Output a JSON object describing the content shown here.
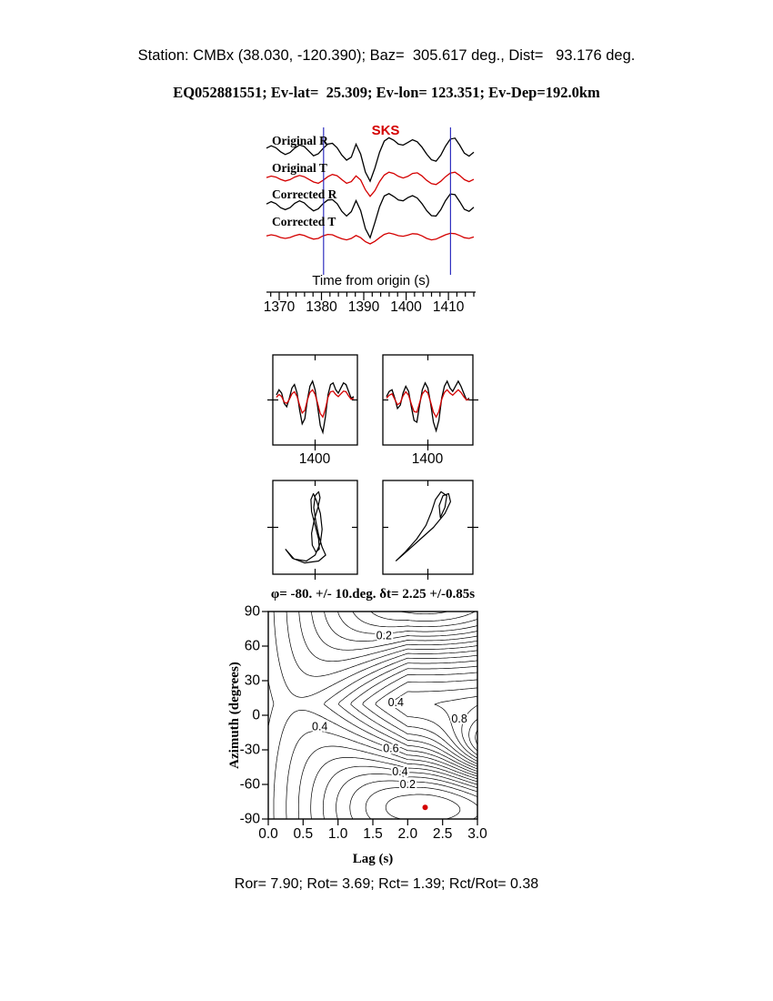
{
  "header": {
    "line1": "Station: CMBx (38.030, -120.390); Baz=  305.617 deg., Dist=   93.176 deg.",
    "line2": "EQ052881551; Ev-lat=  25.309; Ev-lon= 123.351; Ev-Dep=192.0km"
  },
  "footer": {
    "text": "Ror= 7.90; Rot= 3.69; Rct= 1.39; Rct/Rot= 0.38"
  },
  "colors": {
    "red": "#d40000",
    "blue": "#3030c0",
    "black": "#000000"
  },
  "chart_data": [
    {
      "id": "waveforms",
      "type": "line",
      "title": "SKS",
      "xlabel": "Time from origin (s)",
      "x_range": [
        1367,
        1416
      ],
      "x_ticks": [
        1370,
        1380,
        1390,
        1400,
        1410
      ],
      "minor_tick_step": 2,
      "window": [
        1380.5,
        1410.5
      ],
      "series": [
        {
          "name": "Original R",
          "color": "black",
          "values": [
            0.1,
            0.22,
            0.12,
            -0.08,
            -0.22,
            -0.12,
            0.1,
            0.26,
            0.18,
            -0.05,
            -0.28,
            -0.18,
            0.08,
            0.3,
            0.34,
            0.12,
            -0.25,
            -0.5,
            -0.35,
            0.3,
            -0.2,
            -1.1,
            -1.55,
            -0.9,
            -0.1,
            0.45,
            0.62,
            0.5,
            0.3,
            0.25,
            0.38,
            0.52,
            0.42,
            0.15,
            -0.2,
            -0.48,
            -0.55,
            -0.25,
            0.2,
            0.55,
            0.6,
            0.25,
            -0.15,
            -0.3,
            -0.1
          ]
        },
        {
          "name": "Original T",
          "color": "red",
          "values": [
            0.05,
            0.14,
            0.08,
            -0.06,
            -0.16,
            -0.08,
            0.08,
            0.18,
            0.1,
            -0.06,
            -0.22,
            -0.3,
            -0.12,
            0.1,
            0.24,
            0.16,
            -0.08,
            -0.3,
            -0.2,
            0.15,
            -0.1,
            -0.7,
            -1.1,
            -0.75,
            -0.2,
            0.2,
            0.38,
            0.3,
            0.12,
            0.02,
            0.12,
            0.3,
            0.34,
            0.15,
            -0.12,
            -0.32,
            -0.38,
            -0.18,
            0.1,
            0.32,
            0.38,
            0.18,
            -0.08,
            -0.2,
            -0.06
          ]
        },
        {
          "name": "Corrected R",
          "color": "black",
          "values": [
            0.08,
            0.2,
            0.1,
            -0.1,
            -0.2,
            -0.1,
            0.12,
            0.24,
            0.14,
            -0.08,
            -0.26,
            -0.16,
            0.1,
            0.28,
            0.3,
            0.1,
            -0.28,
            -0.52,
            -0.3,
            0.25,
            -0.25,
            -1.15,
            -1.6,
            -0.85,
            -0.05,
            0.48,
            0.6,
            0.46,
            0.28,
            0.24,
            0.4,
            0.5,
            0.38,
            0.1,
            -0.25,
            -0.5,
            -0.52,
            -0.2,
            0.25,
            0.58,
            0.55,
            0.2,
            -0.18,
            -0.28,
            -0.08
          ]
        },
        {
          "name": "Corrected T",
          "color": "red",
          "values": [
            0.04,
            0.1,
            0.05,
            -0.05,
            -0.1,
            -0.05,
            0.05,
            0.12,
            0.06,
            -0.05,
            -0.14,
            -0.1,
            0.04,
            0.12,
            0.1,
            -0.02,
            -0.12,
            -0.18,
            -0.1,
            0.06,
            -0.06,
            -0.28,
            -0.4,
            -0.26,
            -0.06,
            0.12,
            0.2,
            0.14,
            0.05,
            0.02,
            0.08,
            0.16,
            0.14,
            0.04,
            -0.1,
            -0.18,
            -0.14,
            -0.02,
            0.1,
            0.18,
            0.16,
            0.06,
            -0.06,
            -0.1,
            -0.02
          ]
        }
      ]
    },
    {
      "id": "waveform-compare-left",
      "type": "line",
      "x_tick_label": "1400",
      "series": [
        {
          "color": "black",
          "values": [
            0.15,
            0.3,
            0.2,
            -0.1,
            -0.2,
            0.05,
            0.35,
            0.45,
            0.2,
            -0.3,
            -0.7,
            -0.55,
            0.0,
            0.4,
            0.55,
            0.3,
            -0.2,
            -0.75,
            -0.95,
            -0.5,
            0.15,
            0.45,
            0.5,
            0.3,
            0.2,
            0.35,
            0.5,
            0.45,
            0.25,
            0.05,
            0.1
          ]
        },
        {
          "color": "red",
          "values": [
            0.08,
            0.16,
            0.1,
            -0.06,
            -0.1,
            0.02,
            0.18,
            0.24,
            0.1,
            -0.16,
            -0.38,
            -0.3,
            0.0,
            0.22,
            0.3,
            0.16,
            -0.1,
            -0.4,
            -0.5,
            -0.26,
            0.08,
            0.24,
            0.26,
            0.16,
            0.1,
            0.18,
            0.26,
            0.24,
            0.12,
            0.02,
            0.05
          ]
        }
      ]
    },
    {
      "id": "waveform-compare-right",
      "type": "line",
      "x_tick_label": "1400",
      "series": [
        {
          "color": "black",
          "values": [
            0.1,
            0.25,
            0.3,
            0.05,
            -0.25,
            -0.15,
            0.2,
            0.4,
            0.25,
            -0.2,
            -0.6,
            -0.65,
            -0.15,
            0.3,
            0.5,
            0.35,
            -0.1,
            -0.65,
            -0.9,
            -0.6,
            0.05,
            0.4,
            0.55,
            0.35,
            0.25,
            0.4,
            0.55,
            0.4,
            0.2,
            0.0,
            0.05
          ]
        },
        {
          "color": "red",
          "values": [
            0.05,
            0.14,
            0.18,
            0.02,
            -0.14,
            -0.08,
            0.12,
            0.24,
            0.14,
            -0.12,
            -0.34,
            -0.36,
            -0.08,
            0.18,
            0.28,
            0.2,
            -0.06,
            -0.36,
            -0.5,
            -0.34,
            0.02,
            0.22,
            0.3,
            0.2,
            0.14,
            0.22,
            0.3,
            0.22,
            0.1,
            0.0,
            0.02
          ]
        }
      ]
    },
    {
      "id": "particle-motion-left",
      "type": "line",
      "points": [
        [
          -0.85,
          -0.55
        ],
        [
          -0.6,
          -0.8
        ],
        [
          -0.25,
          -0.85
        ],
        [
          0.0,
          -0.7
        ],
        [
          0.15,
          -0.4
        ],
        [
          0.2,
          -0.05
        ],
        [
          0.15,
          0.35
        ],
        [
          0.05,
          0.65
        ],
        [
          -0.05,
          0.85
        ],
        [
          -0.12,
          0.7
        ],
        [
          -0.1,
          0.4
        ],
        [
          0.0,
          0.05
        ],
        [
          0.1,
          -0.3
        ],
        [
          0.12,
          -0.55
        ],
        [
          0.02,
          -0.62
        ],
        [
          -0.08,
          -0.45
        ],
        [
          -0.1,
          -0.15
        ],
        [
          -0.02,
          0.2
        ],
        [
          0.08,
          0.5
        ],
        [
          0.14,
          0.75
        ],
        [
          0.1,
          0.9
        ],
        [
          0.0,
          0.8
        ],
        [
          -0.04,
          0.5
        ],
        [
          0.02,
          0.15
        ],
        [
          0.1,
          -0.2
        ],
        [
          0.2,
          -0.5
        ],
        [
          0.3,
          -0.7
        ],
        [
          0.1,
          -0.85
        ],
        [
          -0.3,
          -0.9
        ],
        [
          -0.65,
          -0.78
        ],
        [
          -0.85,
          -0.55
        ]
      ]
    },
    {
      "id": "particle-motion-right",
      "type": "line",
      "points": [
        [
          -0.85,
          -0.85
        ],
        [
          -0.55,
          -0.6
        ],
        [
          -0.2,
          -0.3
        ],
        [
          0.15,
          0.0
        ],
        [
          0.45,
          0.35
        ],
        [
          0.6,
          0.65
        ],
        [
          0.55,
          0.85
        ],
        [
          0.4,
          0.8
        ],
        [
          0.3,
          0.55
        ],
        [
          0.33,
          0.25
        ],
        [
          0.45,
          0.5
        ],
        [
          0.5,
          0.8
        ],
        [
          0.35,
          0.9
        ],
        [
          0.2,
          0.7
        ],
        [
          0.1,
          0.4
        ],
        [
          -0.05,
          0.05
        ],
        [
          -0.3,
          -0.3
        ],
        [
          -0.6,
          -0.62
        ],
        [
          -0.85,
          -0.85
        ]
      ]
    },
    {
      "id": "splitting-energy-contour",
      "type": "heatmap",
      "title": "φ= -80. +/- 10.deg. δt= 2.25 +/-0.85s",
      "xlabel": "Lag (s)",
      "ylabel": "Azimuth (degrees)",
      "xlim": [
        0,
        3
      ],
      "ylim": [
        -90,
        90
      ],
      "x_ticks": [
        "0.0",
        "0.5",
        "1.0",
        "1.5",
        "2.0",
        "2.5",
        "3.0"
      ],
      "y_ticks": [
        "90",
        "60",
        "30",
        "0",
        "-30",
        "-60",
        "-90"
      ],
      "contour_labels": [
        {
          "text": "0.2",
          "lag": 1.66,
          "az": 69
        },
        {
          "text": "0.4",
          "lag": 1.83,
          "az": 11
        },
        {
          "text": "0.4",
          "lag": 0.74,
          "az": -10
        },
        {
          "text": "0.8",
          "lag": 2.74,
          "az": -3
        },
        {
          "text": "0.6",
          "lag": 1.76,
          "az": -29
        },
        {
          "text": "0.4",
          "lag": 1.89,
          "az": -49
        },
        {
          "text": "0.2",
          "lag": 2.0,
          "az": -60
        }
      ],
      "minimum": {
        "lag": 2.25,
        "az": -80
      },
      "field_model": {
        "min_lag": 2.25,
        "min_az": -80,
        "sig_lag": 2.5,
        "sig_az": 55,
        "taper_lag": 2.0,
        "taper_floor": 0.05,
        "peak": {
          "lag": 3.35,
          "az": -30,
          "sig_lag": 0.7,
          "sig_az": 28,
          "amp": 0.6
        },
        "levels": {
          "start": 0.05,
          "step": 0.06,
          "count": 20
        }
      }
    }
  ]
}
